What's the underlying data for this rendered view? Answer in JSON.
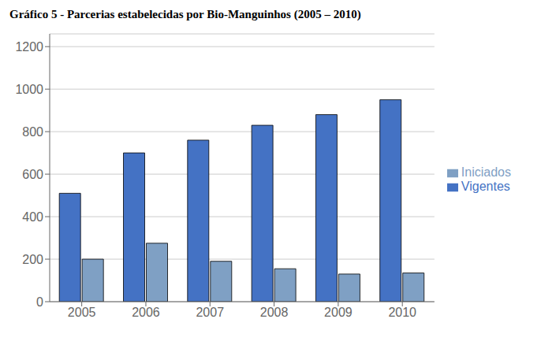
{
  "chart_data": {
    "type": "bar",
    "title": "Gráfico 5 - Parcerias estabelecidas por Bio-Manguinhos (2005 – 2010)",
    "categories": [
      "2005",
      "2006",
      "2007",
      "2008",
      "2009",
      "2010"
    ],
    "series": [
      {
        "name": "Vigentes",
        "color": "#4472C4",
        "values": [
          510,
          700,
          760,
          830,
          880,
          950
        ]
      },
      {
        "name": "Iniciados",
        "color": "#7FA0C4",
        "values": [
          200,
          275,
          190,
          155,
          130,
          135
        ]
      }
    ],
    "ylim": [
      0,
      1260
    ],
    "yticks": [
      0,
      200,
      400,
      600,
      800,
      1000,
      1200
    ],
    "grid": true,
    "legend": "right"
  }
}
